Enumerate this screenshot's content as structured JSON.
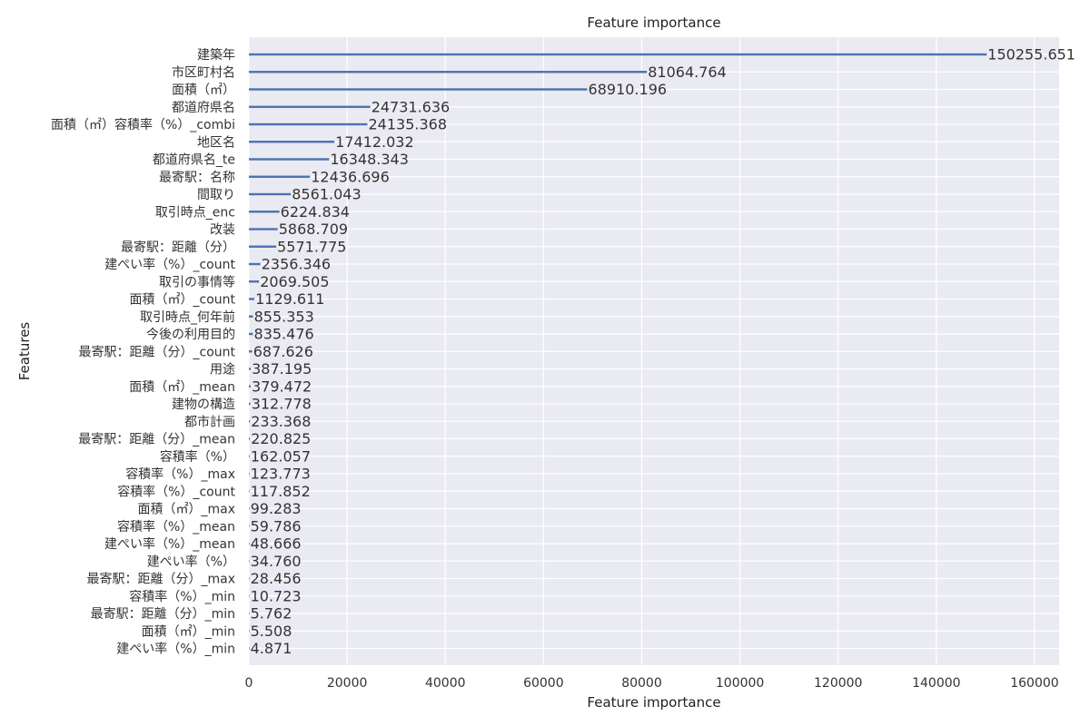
{
  "chart_data": {
    "type": "bar",
    "orientation": "horizontal",
    "title": "Feature importance",
    "xlabel": "Feature importance",
    "ylabel": "Features",
    "xlim": [
      0,
      165000
    ],
    "xticks": [
      0,
      20000,
      40000,
      60000,
      80000,
      100000,
      120000,
      140000,
      160000
    ],
    "grid": true,
    "colors": {
      "background": "#EAEAF2",
      "grid": "#FFFFFF",
      "bar": "#4C72B0"
    },
    "categories": [
      "建築年",
      "市区町村名",
      "面積（㎡）",
      "都道府県名",
      "面積（㎡）容積率（%）_combi",
      "地区名",
      "都道府県名_te",
      "最寄駅：名称",
      "間取り",
      "取引時点_enc",
      "改装",
      "最寄駅：距離（分）",
      "建ぺい率（%）_count",
      "取引の事情等",
      "面積（㎡）_count",
      "取引時点_何年前",
      "今後の利用目的",
      "最寄駅：距離（分）_count",
      "用途",
      "面積（㎡）_mean",
      "建物の構造",
      "都市計画",
      "最寄駅：距離（分）_mean",
      "容積率（%）",
      "容積率（%）_max",
      "容積率（%）_count",
      "面積（㎡）_max",
      "容積率（%）_mean",
      "建ぺい率（%）_mean",
      "建ぺい率（%）",
      "最寄駅：距離（分）_max",
      "容積率（%）_min",
      "最寄駅：距離（分）_min",
      "面積（㎡）_min",
      "建ぺい率（%）_min"
    ],
    "values": [
      150255.651,
      81064.764,
      68910.196,
      24731.636,
      24135.368,
      17412.032,
      16348.343,
      12436.696,
      8561.043,
      6224.834,
      5868.709,
      5571.775,
      2356.346,
      2069.505,
      1129.611,
      855.353,
      835.476,
      687.626,
      387.195,
      379.472,
      312.778,
      233.368,
      220.825,
      162.057,
      123.773,
      117.852,
      99.283,
      59.786,
      48.666,
      34.76,
      28.456,
      10.723,
      5.762,
      5.508,
      4.871
    ],
    "value_labels": [
      "150255.651",
      "81064.764",
      "68910.196",
      "24731.636",
      "24135.368",
      "17412.032",
      "16348.343",
      "12436.696",
      "8561.043",
      "6224.834",
      "5868.709",
      "5571.775",
      "2356.346",
      "2069.505",
      "1129.611",
      "855.353",
      "835.476",
      "687.626",
      "387.195",
      "379.472",
      "312.778",
      "233.368",
      "220.825",
      "162.057",
      "123.773",
      "117.852",
      "99.283",
      "59.786",
      "48.666",
      "34.760",
      "28.456",
      "10.723",
      "5.762",
      "5.508",
      "4.871"
    ]
  }
}
